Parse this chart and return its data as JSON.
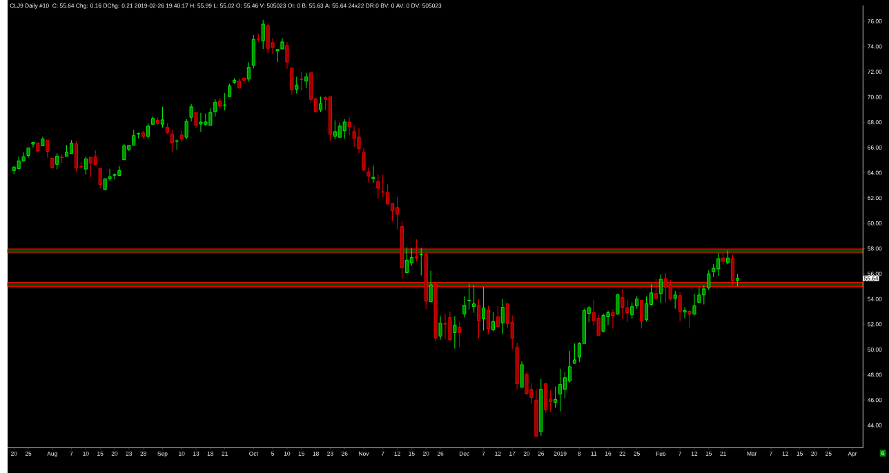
{
  "chart_data": {
    "type": "candlestick",
    "title": "CLJ9 Daily #10",
    "subtitle": "C: 55.64 Chg: 0.16 DChg: 0.21 2019-02-26 19:40:17 H: 55.99 L: 55.02 O: 55.46 V: 505023 OI: 0 B: 55.63 A: 55.64 24x22 DR:0 BV: 0 AV: 0 DV: 505023",
    "categories": [
      "20",
      null,
      null,
      "25",
      null,
      null,
      null,
      null,
      "Aug",
      null,
      null,
      null,
      "7",
      null,
      null,
      "10",
      null,
      null,
      "15",
      null,
      null,
      "20",
      null,
      null,
      "23",
      null,
      null,
      "28",
      null,
      null,
      null,
      "Sep",
      null,
      null,
      null,
      "10",
      null,
      null,
      "13",
      null,
      null,
      "18",
      null,
      null,
      "21",
      null,
      null,
      null,
      null,
      null,
      "Oct",
      null,
      null,
      null,
      "5",
      null,
      null,
      "10",
      null,
      null,
      "15",
      null,
      null,
      "18",
      null,
      null,
      "23",
      null,
      null,
      "26",
      null,
      null,
      null,
      "Nov",
      null,
      null,
      null,
      "7",
      null,
      null,
      "12",
      null,
      null,
      "15",
      null,
      null,
      "20",
      null,
      null,
      "26",
      null,
      null,
      null,
      null,
      "Dec",
      null,
      null,
      null,
      "7",
      null,
      null,
      "12",
      null,
      null,
      "17",
      null,
      null,
      "20",
      null,
      null,
      "26",
      null,
      null,
      null,
      "2019",
      null,
      null,
      null,
      "8",
      null,
      null,
      "11",
      null,
      null,
      "16",
      null,
      null,
      "22",
      null,
      null,
      "25",
      null,
      null,
      null,
      null,
      "Feb",
      null,
      null,
      null,
      "7",
      null,
      null,
      "12",
      null,
      null,
      "15",
      null,
      null,
      "21",
      null,
      null,
      null,
      null,
      null,
      "Mar",
      null,
      null,
      null,
      "7",
      null,
      null,
      "12",
      null,
      null,
      "15",
      null,
      null,
      "20",
      null,
      null,
      "25",
      null,
      null,
      null,
      null,
      "Apr"
    ],
    "ohlc": [
      [
        64.18,
        64.54,
        63.87,
        64.45
      ],
      [
        64.32,
        65.28,
        64.32,
        64.94
      ],
      [
        64.94,
        65.61,
        64.87,
        65.26
      ],
      [
        65.37,
        65.97,
        65.19,
        65.97
      ],
      [
        66.27,
        66.4,
        65.98,
        66.4
      ],
      [
        66.35,
        66.42,
        65.61,
        65.73
      ],
      [
        66.13,
        66.85,
        66.13,
        66.67
      ],
      [
        66.56,
        66.56,
        65.19,
        65.7
      ],
      [
        65.15,
        65.15,
        64.38,
        64.38
      ],
      [
        64.67,
        65.55,
        64.27,
        65.32
      ],
      [
        65.24,
        65.44,
        64.74,
        65.21
      ],
      [
        65.3,
        66.2,
        65.3,
        65.64
      ],
      [
        65.52,
        66.58,
        65.52,
        66.35
      ],
      [
        66.31,
        66.53,
        64.05,
        64.38
      ],
      [
        64.49,
        64.85,
        64.45,
        64.45
      ],
      [
        64.29,
        65.28,
        63.87,
        65.1
      ],
      [
        65.23,
        65.23,
        63.64,
        64.76
      ],
      [
        65.26,
        65.77,
        64.65,
        64.65
      ],
      [
        64.34,
        64.34,
        62.75,
        63.08
      ],
      [
        62.66,
        63.53,
        62.66,
        63.53
      ],
      [
        63.53,
        64.31,
        63.35,
        63.69
      ],
      [
        63.8,
        63.96,
        63.46,
        63.85
      ],
      [
        63.78,
        64.52,
        63.78,
        64.18
      ],
      [
        65.03,
        66.26,
        65.03,
        66.13
      ],
      [
        65.84,
        66.18,
        65.73,
        66.18
      ],
      [
        66.18,
        67.39,
        66.18,
        66.94
      ],
      [
        67.07,
        67.18,
        66.71,
        67.1
      ],
      [
        67.16,
        67.3,
        66.69,
        66.87
      ],
      [
        66.87,
        67.92,
        66.69,
        67.7
      ],
      [
        67.84,
        68.48,
        67.84,
        68.3
      ],
      [
        68.15,
        68.37,
        67.79,
        67.9
      ],
      [
        67.84,
        69.23,
        67.57,
        68.19
      ],
      [
        67.61,
        67.93,
        67.07,
        67.19
      ],
      [
        67.07,
        67.43,
        65.68,
        66.38
      ],
      [
        66.49,
        66.63,
        65.82,
        66.53
      ],
      [
        66.99,
        67.34,
        66.44,
        66.67
      ],
      [
        66.81,
        68.26,
        66.67,
        68.08
      ],
      [
        68.39,
        69.45,
        68.06,
        69.23
      ],
      [
        68.78,
        68.78,
        67.52,
        67.75
      ],
      [
        67.86,
        68.75,
        67.25,
        68.02
      ],
      [
        67.84,
        68.69,
        67.74,
        68.02
      ],
      [
        67.75,
        69.11,
        67.75,
        68.78
      ],
      [
        68.84,
        69.83,
        68.44,
        69.59
      ],
      [
        69.7,
        69.92,
        69.11,
        69.27
      ],
      [
        69.34,
        70.31,
        68.93,
        69.38
      ],
      [
        70.03,
        71.05,
        70.03,
        70.89
      ],
      [
        71.16,
        71.49,
        71.04,
        71.33
      ],
      [
        71.27,
        71.49,
        70.71,
        70.71
      ],
      [
        71.49,
        71.54,
        71.04,
        71.33
      ],
      [
        71.42,
        72.75,
        71.24,
        72.35
      ],
      [
        72.5,
        74.92,
        72.26,
        74.57
      ],
      [
        74.61,
        75.03,
        74.34,
        74.57
      ],
      [
        74.45,
        76.11,
        73.8,
        75.77
      ],
      [
        75.66,
        75.82,
        73.47,
        73.85
      ],
      [
        74.3,
        74.65,
        73.42,
        73.91
      ],
      [
        73.65,
        73.76,
        72.77,
        73.76
      ],
      [
        73.8,
        74.65,
        73.8,
        74.36
      ],
      [
        74.09,
        74.36,
        72.23,
        72.77
      ],
      [
        72.3,
        72.3,
        70.17,
        70.57
      ],
      [
        70.62,
        71.6,
        70.28,
        70.95
      ],
      [
        71.42,
        71.98,
        70.5,
        71.38
      ],
      [
        71.25,
        71.92,
        70.71,
        71.6
      ],
      [
        71.92,
        71.92,
        69.59,
        69.81
      ],
      [
        69.86,
        69.95,
        68.75,
        68.83
      ],
      [
        68.98,
        70.04,
        68.82,
        69.47
      ],
      [
        69.97,
        70.03,
        68.98,
        69.81
      ],
      [
        70.03,
        70.03,
        66.49,
        67.05
      ],
      [
        66.89,
        68.15,
        66.65,
        67.26
      ],
      [
        66.81,
        67.97,
        66.76,
        67.7
      ],
      [
        67.32,
        68.26,
        66.7,
        68.02
      ],
      [
        68.02,
        68.37,
        66.97,
        67.64
      ],
      [
        67.26,
        67.75,
        66.05,
        66.72
      ],
      [
        66.83,
        67.53,
        65.55,
        65.91
      ],
      [
        65.59,
        65.96,
        64.14,
        64.21
      ],
      [
        64.07,
        64.39,
        63.24,
        63.74
      ],
      [
        63.53,
        64.57,
        63.19,
        63.64
      ],
      [
        63.31,
        63.82,
        61.94,
        62.77
      ],
      [
        62.5,
        63.87,
        62.05,
        62.46
      ],
      [
        62.44,
        63.09,
        61.47,
        61.52
      ],
      [
        61.58,
        61.58,
        60.17,
        60.98
      ],
      [
        61.25,
        62.08,
        59.52,
        60.71
      ],
      [
        59.74,
        60.17,
        55.6,
        56.47
      ],
      [
        56.09,
        58.11,
        56.04,
        57.08
      ],
      [
        56.87,
        58.06,
        56.63,
        57.3
      ],
      [
        57.35,
        58.73,
        56.96,
        57.25
      ],
      [
        57.52,
        58.06,
        55.87,
        57.55
      ],
      [
        57.55,
        57.68,
        53.22,
        53.82
      ],
      [
        53.78,
        56.25,
        53.78,
        55.13
      ],
      [
        55.19,
        55.24,
        50.68,
        50.91
      ],
      [
        51.07,
        52.64,
        50.78,
        52.1
      ],
      [
        52.05,
        52.81,
        50.84,
        52.01
      ],
      [
        52.54,
        53.02,
        50.68,
        50.78
      ],
      [
        51.34,
        52.64,
        50.08,
        51.94
      ],
      [
        51.78,
        52.21,
        50.19,
        51.34
      ],
      [
        52.81,
        54.21,
        52.54,
        53.51
      ],
      [
        53.87,
        55.19,
        53.17,
        53.91
      ],
      [
        53.4,
        55.13,
        52.91,
        53.62
      ],
      [
        53.51,
        54.0,
        50.89,
        52.27
      ],
      [
        52.43,
        54.97,
        51.51,
        53.29
      ],
      [
        53.13,
        53.46,
        51.22,
        51.65
      ],
      [
        51.56,
        52.99,
        51.44,
        52.21
      ],
      [
        52.59,
        53.44,
        51.73,
        51.83
      ],
      [
        52.1,
        54.0,
        51.22,
        53.35
      ],
      [
        53.62,
        53.62,
        51.71,
        52.05
      ],
      [
        52.16,
        52.7,
        50.03,
        50.91
      ],
      [
        50.16,
        50.54,
        46.84,
        47.29
      ],
      [
        47.01,
        49.07,
        47.01,
        48.8
      ],
      [
        48.04,
        48.21,
        46.42,
        46.53
      ],
      [
        46.85,
        47.34,
        45.7,
        46.2
      ],
      [
        45.99,
        46.8,
        43.06,
        43.12
      ],
      [
        43.5,
        47.66,
        43.17,
        46.85
      ],
      [
        47.29,
        47.34,
        45.01,
        45.23
      ],
      [
        46.09,
        46.8,
        45.05,
        45.88
      ],
      [
        45.82,
        47.07,
        45.39,
        46.04
      ],
      [
        46.47,
        48.48,
        45.1,
        47.23
      ],
      [
        46.85,
        48.21,
        46.13,
        47.77
      ],
      [
        47.5,
        49.88,
        47.39,
        48.64
      ],
      [
        48.91,
        50.48,
        48.86,
        49.18
      ],
      [
        49.4,
        50.59,
        49.0,
        50.48
      ],
      [
        50.48,
        53.24,
        50.48,
        53.08
      ],
      [
        52.86,
        53.46,
        52.16,
        53.3
      ],
      [
        52.92,
        53.95,
        51.89,
        52.27
      ],
      [
        52.48,
        52.75,
        51.08,
        51.13
      ],
      [
        51.45,
        52.86,
        51.35,
        52.7
      ],
      [
        52.59,
        53.08,
        51.94,
        52.92
      ],
      [
        52.92,
        53.19,
        51.67,
        52.7
      ],
      [
        52.81,
        54.43,
        52.75,
        54.33
      ],
      [
        54.11,
        54.76,
        52.43,
        53.3
      ],
      [
        53.3,
        53.95,
        52.19,
        52.9
      ],
      [
        52.76,
        53.73,
        52.43,
        53.4
      ],
      [
        53.46,
        54.22,
        53.24,
        54.0
      ],
      [
        53.89,
        53.89,
        51.67,
        52.27
      ],
      [
        52.38,
        54.22,
        52.21,
        53.62
      ],
      [
        53.57,
        55.19,
        53.46,
        54.49
      ],
      [
        54.43,
        55.62,
        53.95,
        54.05
      ],
      [
        54.43,
        55.95,
        53.68,
        55.57
      ],
      [
        55.62,
        56.06,
        53.68,
        54.92
      ],
      [
        55.14,
        55.52,
        53.89,
        54.0
      ],
      [
        54.05,
        54.65,
        53.24,
        54.32
      ],
      [
        54.27,
        54.54,
        52.21,
        53.03
      ],
      [
        52.97,
        53.35,
        52.47,
        53.08
      ],
      [
        53.03,
        53.13,
        51.67,
        52.81
      ],
      [
        52.81,
        54.43,
        52.7,
        53.46
      ],
      [
        53.73,
        54.97,
        53.73,
        54.32
      ],
      [
        54.32,
        55.08,
        53.57,
        54.81
      ],
      [
        54.87,
        56.27,
        54.7,
        56.0
      ],
      [
        56.17,
        56.76,
        55.73,
        56.44
      ],
      [
        56.38,
        57.63,
        55.84,
        57.2
      ],
      [
        57.25,
        57.63,
        56.71,
        56.98
      ],
      [
        56.87,
        57.85,
        56.76,
        57.25
      ],
      [
        57.2,
        57.52,
        55.13,
        55.46
      ],
      [
        55.46,
        55.99,
        55.02,
        55.64
      ],
      null,
      null,
      null,
      null,
      null,
      null,
      null,
      null,
      null,
      null,
      null,
      null,
      null,
      null,
      null,
      null,
      null,
      null,
      null,
      null,
      null,
      null,
      null,
      null
    ],
    "ylim": [
      42.22,
      77.25
    ],
    "yticks": [
      {
        "value": 44,
        "label": "44.00"
      },
      {
        "value": 46,
        "label": "46.00"
      },
      {
        "value": 48,
        "label": "48.00"
      },
      {
        "value": 50,
        "label": "50.00"
      },
      {
        "value": 52,
        "label": "52.00"
      },
      {
        "value": 54,
        "label": "54.00"
      },
      {
        "value": 56,
        "label": "56.00"
      },
      {
        "value": 58,
        "label": "58.00"
      },
      {
        "value": 60,
        "label": "60.00"
      },
      {
        "value": 62,
        "label": "62.00"
      },
      {
        "value": 64,
        "label": "64.00"
      },
      {
        "value": 66,
        "label": "66.00"
      },
      {
        "value": 68,
        "label": "68.00"
      },
      {
        "value": 70,
        "label": "70.00"
      },
      {
        "value": 72,
        "label": "72.00"
      },
      {
        "value": 74,
        "label": "74.00"
      },
      {
        "value": 76,
        "label": "76.00"
      }
    ],
    "bands": [
      {
        "axis": "y",
        "from": 57.65,
        "to": 57.97,
        "color": "#004d00"
      },
      {
        "axis": "y",
        "from": 54.99,
        "to": 55.32,
        "color": "#004d00"
      }
    ],
    "annotations": [
      {
        "text": "55.64",
        "y": 55.64
      },
      "6"
    ],
    "grid": false
  }
}
